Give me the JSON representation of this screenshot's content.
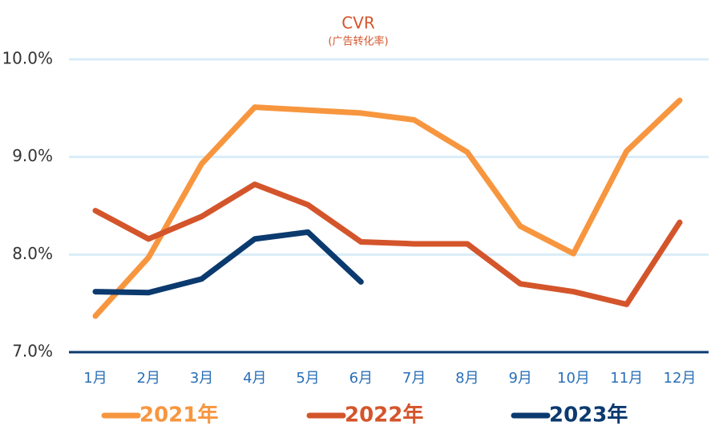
{
  "chart_data": {
    "type": "line",
    "title": "CVR",
    "subtitle": "(广告转化率)",
    "categories": [
      "1月",
      "2月",
      "3月",
      "4月",
      "5月",
      "6月",
      "7月",
      "8月",
      "9月",
      "10月",
      "11月",
      "12月"
    ],
    "series": [
      {
        "name": "2021年",
        "color": "#f7963f",
        "values": [
          7.37,
          7.97,
          8.93,
          9.51,
          9.48,
          9.45,
          9.38,
          9.05,
          8.29,
          8.01,
          9.06,
          9.58
        ]
      },
      {
        "name": "2022年",
        "color": "#d4552b",
        "values": [
          8.45,
          8.16,
          8.39,
          8.72,
          8.51,
          8.13,
          8.11,
          8.11,
          7.7,
          7.62,
          7.49,
          8.33
        ]
      },
      {
        "name": "2023年",
        "color": "#0b3a6f",
        "values": [
          7.62,
          7.61,
          7.75,
          8.16,
          8.23,
          7.72,
          null,
          null,
          null,
          null,
          null,
          null
        ]
      }
    ],
    "ylim": [
      7,
      10
    ],
    "yticks": [
      {
        "value": 7,
        "label": "7.0%"
      },
      {
        "value": 8,
        "label": "8.0%"
      },
      {
        "value": 9,
        "label": "9.0%"
      },
      {
        "value": 10,
        "label": "10.0%"
      }
    ],
    "grid": true,
    "legend": "bottom"
  }
}
